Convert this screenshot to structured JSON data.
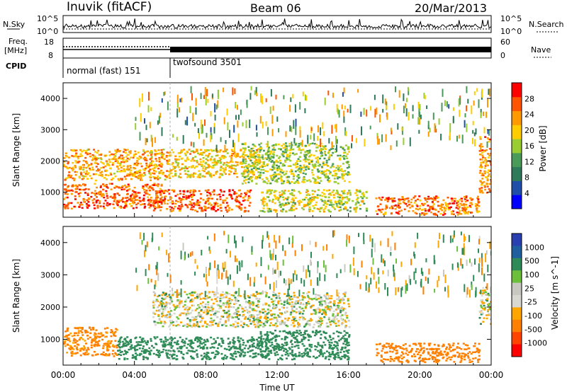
{
  "header": {
    "station": "Inuvik (fitACF)",
    "beam": "Beam 06",
    "date": "20/Mar/2013"
  },
  "noise_panel": {
    "left_label": "N.Sky",
    "right_label": "N.Search",
    "left_ticks": [
      "10^5",
      "10^0"
    ],
    "right_ticks": [
      "10^5",
      "10^0"
    ]
  },
  "freq_panel": {
    "left_label_line1": "Freq.",
    "left_label_line2": "[MHz]",
    "left_ticks": [
      "18",
      "8"
    ],
    "right_label": "Nave",
    "right_ticks": [
      "60",
      "0"
    ]
  },
  "cpid_panel": {
    "label": "CPID",
    "segments": [
      {
        "name": "normal (fast) 151",
        "start_h": 0,
        "end_h": 6
      },
      {
        "name": "twofsound 3501",
        "start_h": 6,
        "end_h": 24
      }
    ]
  },
  "axes": {
    "ylabel": "Slant Range [km]",
    "xlabel": "Time UT",
    "x_tick_labels": [
      "00:00",
      "04:00",
      "08:00",
      "12:00",
      "16:00",
      "20:00",
      "00:00"
    ],
    "y_tick_labels": [
      "1000",
      "2000",
      "3000",
      "4000"
    ]
  },
  "power_colorbar": {
    "label": "Power [dB]",
    "ticks": [
      "4",
      "8",
      "12",
      "16",
      "20",
      "24",
      "28"
    ],
    "colors": [
      "#0000ff",
      "#1f4fa8",
      "#2f7a5a",
      "#4a9a5a",
      "#9acd32",
      "#ffcc00",
      "#ff9900",
      "#ff5500",
      "#ff0000"
    ]
  },
  "velocity_colorbar": {
    "label": "Velocity [m s^-1]",
    "ticks": [
      "1000",
      "500",
      "100",
      "25",
      "-25",
      "-100",
      "-500",
      "-1000"
    ],
    "colors": [
      "#2a3fb0",
      "#1f5fa0",
      "#2e8b57",
      "#6cbf3a",
      "#c8c8c0",
      "#d8d8d0",
      "#ffa500",
      "#ff7f00",
      "#ff4400",
      "#ff0000"
    ]
  },
  "chart_data": [
    {
      "type": "heatmap",
      "name": "power",
      "xlabel": "Time UT",
      "ylabel": "Slant Range [km]",
      "xlim_hours": [
        0,
        24
      ],
      "ylim_km": [
        200,
        4500
      ],
      "colorbar_label": "Power [dB]",
      "colorbar_ticks": [
        4,
        8,
        12,
        16,
        20,
        24,
        28
      ],
      "regions": [
        {
          "t0": 0,
          "t1": 5.5,
          "r0": 500,
          "r1": 1300,
          "value_db": 26
        },
        {
          "t0": 0,
          "t1": 6,
          "r0": 1400,
          "r1": 2400,
          "value_db": 22
        },
        {
          "t0": 5,
          "t1": 10.5,
          "r0": 400,
          "r1": 1100,
          "value_db": 26
        },
        {
          "t0": 6,
          "t1": 11,
          "r0": 1500,
          "r1": 2400,
          "value_db": 20
        },
        {
          "t0": 10,
          "t1": 16,
          "r0": 1300,
          "r1": 2600,
          "value_db": 16
        },
        {
          "t0": 11,
          "t1": 17,
          "r0": 400,
          "r1": 1100,
          "value_db": 18
        },
        {
          "t0": 17.5,
          "t1": 23.3,
          "r0": 300,
          "r1": 900,
          "value_db": 25
        },
        {
          "t0": 23.3,
          "t1": 24,
          "r0": 1000,
          "r1": 2800,
          "value_db": 24
        }
      ]
    },
    {
      "type": "heatmap",
      "name": "velocity",
      "xlabel": "Time UT",
      "ylabel": "Slant Range [km]",
      "xlim_hours": [
        0,
        24
      ],
      "ylim_km": [
        200,
        4500
      ],
      "colorbar_label": "Velocity [m s^-1]",
      "colorbar_ticks": [
        1000,
        500,
        100,
        25,
        -25,
        -100,
        -500,
        -1000
      ],
      "regions": [
        {
          "t0": 0,
          "t1": 3,
          "r0": 500,
          "r1": 1400,
          "value_ms": -150
        },
        {
          "t0": 3,
          "t1": 11.5,
          "r0": 400,
          "r1": 1100,
          "value_ms": 150
        },
        {
          "t0": 5,
          "t1": 16,
          "r0": 1400,
          "r1": 2500,
          "value_ms": 0
        },
        {
          "t0": 11,
          "t1": 16,
          "r0": 400,
          "r1": 1300,
          "value_ms": 200
        },
        {
          "t0": 17.5,
          "t1": 23.3,
          "r0": 300,
          "r1": 900,
          "value_ms": -200
        },
        {
          "t0": 23.3,
          "t1": 24,
          "r0": 1500,
          "r1": 2700,
          "value_ms": 0
        }
      ]
    }
  ]
}
